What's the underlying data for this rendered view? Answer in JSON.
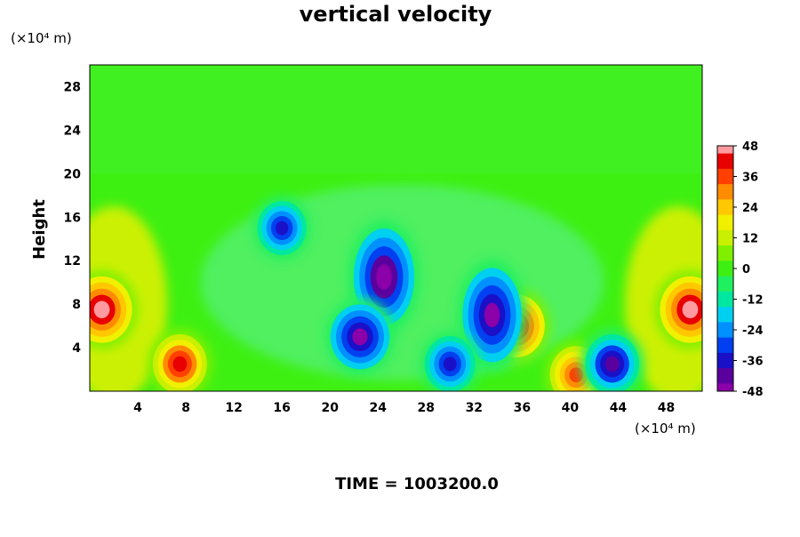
{
  "chart_data": {
    "type": "heatmap",
    "title": "vertical velocity",
    "ylabel": "Height",
    "y_unit_label": "(×10⁴ m)",
    "x_unit_label": "(×10⁴ m)",
    "xlim": [
      0,
      51
    ],
    "ylim": [
      0,
      30
    ],
    "x_ticks": [
      4,
      8,
      12,
      16,
      20,
      24,
      28,
      32,
      36,
      40,
      44,
      48
    ],
    "y_ticks": [
      4,
      8,
      12,
      16,
      20,
      24,
      28
    ],
    "colorbar": {
      "min": -48,
      "max": 48,
      "ticks": [
        48,
        36,
        24,
        12,
        0,
        -12,
        -24,
        -36,
        -48
      ]
    },
    "features": [
      {
        "x": 1.0,
        "y": 7.5,
        "value": 48
      },
      {
        "x": 7.5,
        "y": 2.5,
        "value": 40
      },
      {
        "x": 50.0,
        "y": 7.5,
        "value": 48
      },
      {
        "x": 35.5,
        "y": 6.0,
        "value": 44
      },
      {
        "x": 40.5,
        "y": 1.5,
        "value": 38
      },
      {
        "x": 24.5,
        "y": 10.5,
        "value": -48
      },
      {
        "x": 22.5,
        "y": 5.0,
        "value": -46
      },
      {
        "x": 33.5,
        "y": 7.0,
        "value": -46
      },
      {
        "x": 43.5,
        "y": 2.5,
        "value": -40
      },
      {
        "x": 16.0,
        "y": 15.0,
        "value": -34
      },
      {
        "x": 30.0,
        "y": 2.5,
        "value": -36
      }
    ],
    "grid": false,
    "legend": "colorbar-right"
  },
  "footer": {
    "time_label": "TIME = 1003200.0"
  }
}
